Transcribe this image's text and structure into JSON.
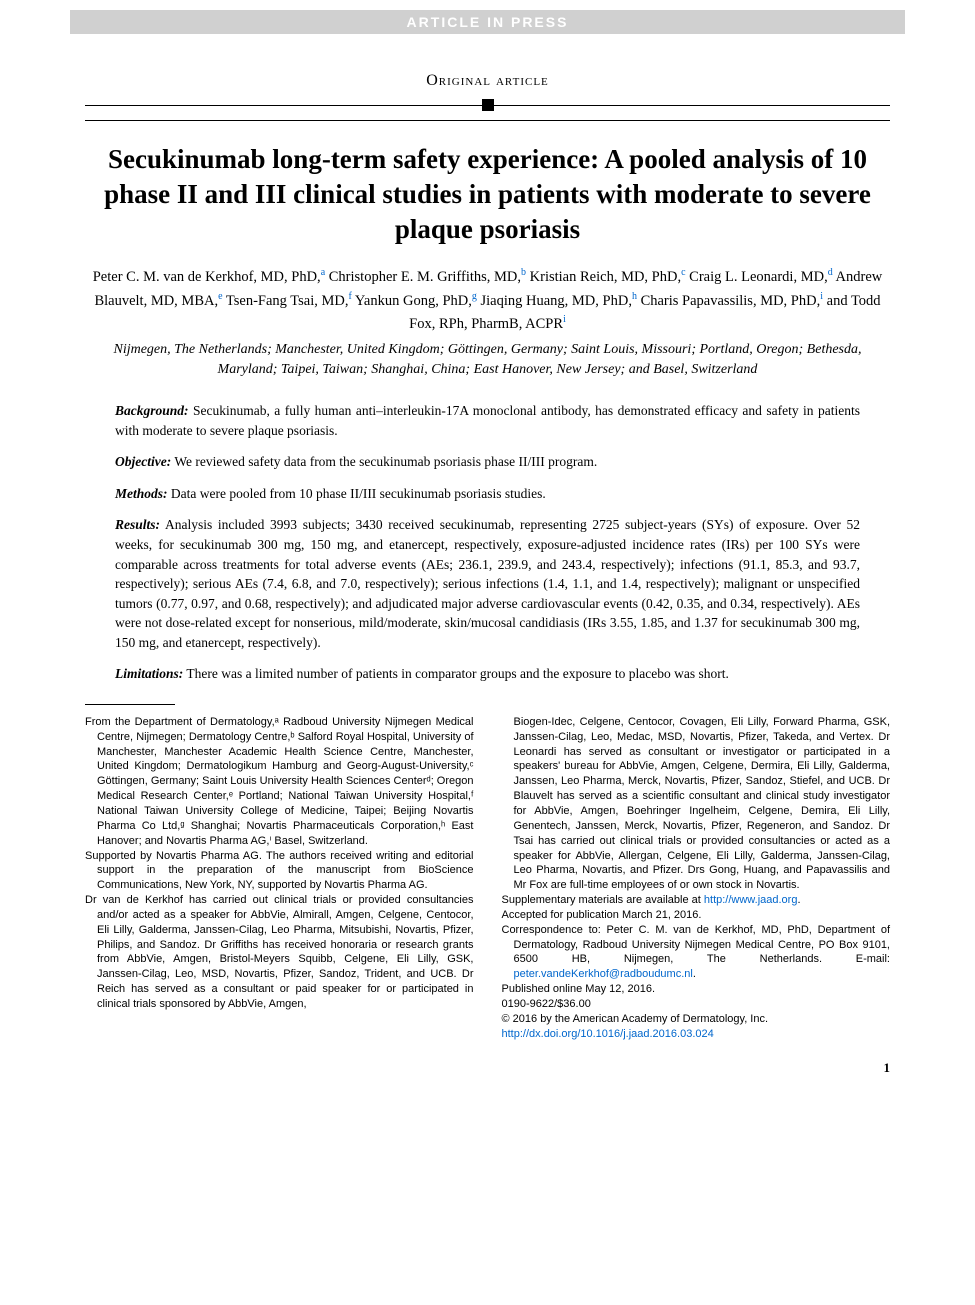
{
  "banner": "ARTICLE IN PRESS",
  "article_type": "Original article",
  "title": "Secukinumab long-term safety experience: A pooled analysis of 10 phase II and III clinical studies in patients with moderate to severe plaque psoriasis",
  "authors_html": "Peter C. M. van de Kerkhof, MD, PhD,<sup>a</sup> Christopher E. M. Griffiths, MD,<sup>b</sup> Kristian Reich, MD, PhD,<sup>c</sup> Craig L. Leonardi, MD,<sup>d</sup> Andrew Blauvelt, MD, MBA,<sup>e</sup> Tsen-Fang Tsai, MD,<sup>f</sup> Yankun Gong, PhD,<sup>g</sup> Jiaqing Huang, MD, PhD,<sup>h</sup> Charis Papavassilis, MD, PhD,<sup>i</sup> and Todd Fox, RPh, PharmB, ACPR<sup>i</sup>",
  "affil_locations": "Nijmegen, The Netherlands; Manchester, United Kingdom; Göttingen, Germany; Saint Louis, Missouri; Portland, Oregon; Bethesda, Maryland; Taipei, Taiwan; Shanghai, China; East Hanover, New Jersey; and Basel, Switzerland",
  "abstract": {
    "background": {
      "heading": "Background:",
      "text": " Secukinumab, a fully human anti–interleukin-17A monoclonal antibody, has demonstrated efficacy and safety in patients with moderate to severe plaque psoriasis."
    },
    "objective": {
      "heading": "Objective:",
      "text": " We reviewed safety data from the secukinumab psoriasis phase II/III program."
    },
    "methods": {
      "heading": "Methods:",
      "text": " Data were pooled from 10 phase II/III secukinumab psoriasis studies."
    },
    "results": {
      "heading": "Results:",
      "text": " Analysis included 3993 subjects; 3430 received secukinumab, representing 2725 subject-years (SYs) of exposure. Over 52 weeks, for secukinumab 300 mg, 150 mg, and etanercept, respectively, exposure-adjusted incidence rates (IRs) per 100 SYs were comparable across treatments for total adverse events (AEs; 236.1, 239.9, and 243.4, respectively); infections (91.1, 85.3, and 93.7, respectively); serious AEs (7.4, 6.8, and 7.0, respectively); serious infections (1.4, 1.1, and 1.4, respectively); malignant or unspecified tumors (0.77, 0.97, and 0.68, respectively); and adjudicated major adverse cardiovascular events (0.42, 0.35, and 0.34, respectively). AEs were not dose-related except for nonserious, mild/moderate, skin/mucosal candidiasis (IRs 3.55, 1.85, and 1.37 for secukinumab 300 mg, 150 mg, and etanercept, respectively)."
    },
    "limitations": {
      "heading": "Limitations:",
      "text": " There was a limited number of patients in comparator groups and the exposure to placebo was short."
    }
  },
  "footer": {
    "left": [
      "From the Department of Dermatology,ᵃ Radboud University Nijmegen Medical Centre, Nijmegen; Dermatology Centre,ᵇ Salford Royal Hospital, University of Manchester, Manchester Academic Health Science Centre, Manchester, United Kingdom; Dermatologikum Hamburg and Georg-August-University,ᶜ Göttingen, Germany; Saint Louis University Health Sciences Centerᵈ; Oregon Medical Research Center,ᵉ Portland; National Taiwan University Hospital,ᶠ National Taiwan University College of Medicine, Taipei; Beijing Novartis Pharma Co Ltd,ᵍ Shanghai; Novartis Pharmaceuticals Corporation,ʰ East Hanover; and Novartis Pharma AG,ⁱ Basel, Switzerland.",
      "Supported by Novartis Pharma AG. The authors received writing and editorial support in the preparation of the manuscript from BioScience Communications, New York, NY, supported by Novartis Pharma AG.",
      "Dr van de Kerkhof has carried out clinical trials or provided consultancies and/or acted as a speaker for AbbVie, Almirall, Amgen, Celgene, Centocor, Eli Lilly, Galderma, Janssen-Cilag, Leo Pharma, Mitsubishi, Novartis, Pfizer, Philips, and Sandoz. Dr Griffiths has received honoraria or research grants from AbbVie, Amgen, Bristol-Meyers Squibb, Celgene, Eli Lilly, GSK, Janssen-Cilag, Leo, MSD, Novartis, Pfizer, Sandoz, Trident, and UCB. Dr Reich has served as a consultant or paid speaker for or participated in clinical trials sponsored by AbbVie, Amgen,"
    ],
    "right_cont": "Biogen-Idec, Celgene, Centocor, Covagen, Eli Lilly, Forward Pharma, GSK, Janssen-Cilag, Leo, Medac, MSD, Novartis, Pfizer, Takeda, and Vertex. Dr Leonardi has served as consultant or investigator or participated in a speakers' bureau for AbbVie, Amgen, Celgene, Dermira, Eli Lilly, Galderma, Janssen, Leo Pharma, Merck, Novartis, Pfizer, Sandoz, Stiefel, and UCB. Dr Blauvelt has served as a scientific consultant and clinical study investigator for AbbVie, Amgen, Boehringer Ingelheim, Celgene, Demira, Eli Lilly, Genentech, Janssen, Merck, Novartis, Pfizer, Regeneron, and Sandoz. Dr Tsai has carried out clinical trials or provided consultancies or acted as a speaker for AbbVie, Allergan, Celgene, Eli Lilly, Galderma, Janssen-Cilag, Leo Pharma, Novartis, and Pfizer. Drs Gong, Huang, and Papavassilis and Mr Fox are full-time employees of or own stock in Novartis.",
    "right_lines": [
      "Accepted for publication March 21, 2016.",
      "Published online May 12, 2016.",
      "0190-9622/$36.00",
      "© 2016 by the American Academy of Dermatology, Inc."
    ],
    "supp_prefix": "Supplementary materials are available at ",
    "supp_link": "http://www.jaad.org",
    "corr_prefix": "Correspondence to: Peter C. M. van de Kerkhof, MD, PhD, Department of Dermatology, Radboud University Nijmegen Medical Centre, PO Box 9101, 6500 HB, Nijmegen, The Netherlands. E-mail: ",
    "corr_email": "peter.vandeKerkhof@radboudumc.nl",
    "doi": "http://dx.doi.org/10.1016/j.jaad.2016.03.024"
  },
  "pagenum": "1",
  "colors": {
    "link": "#0066cc",
    "banner_bg": "#d0d0d0",
    "banner_fg": "#ffffff",
    "text": "#000000"
  }
}
